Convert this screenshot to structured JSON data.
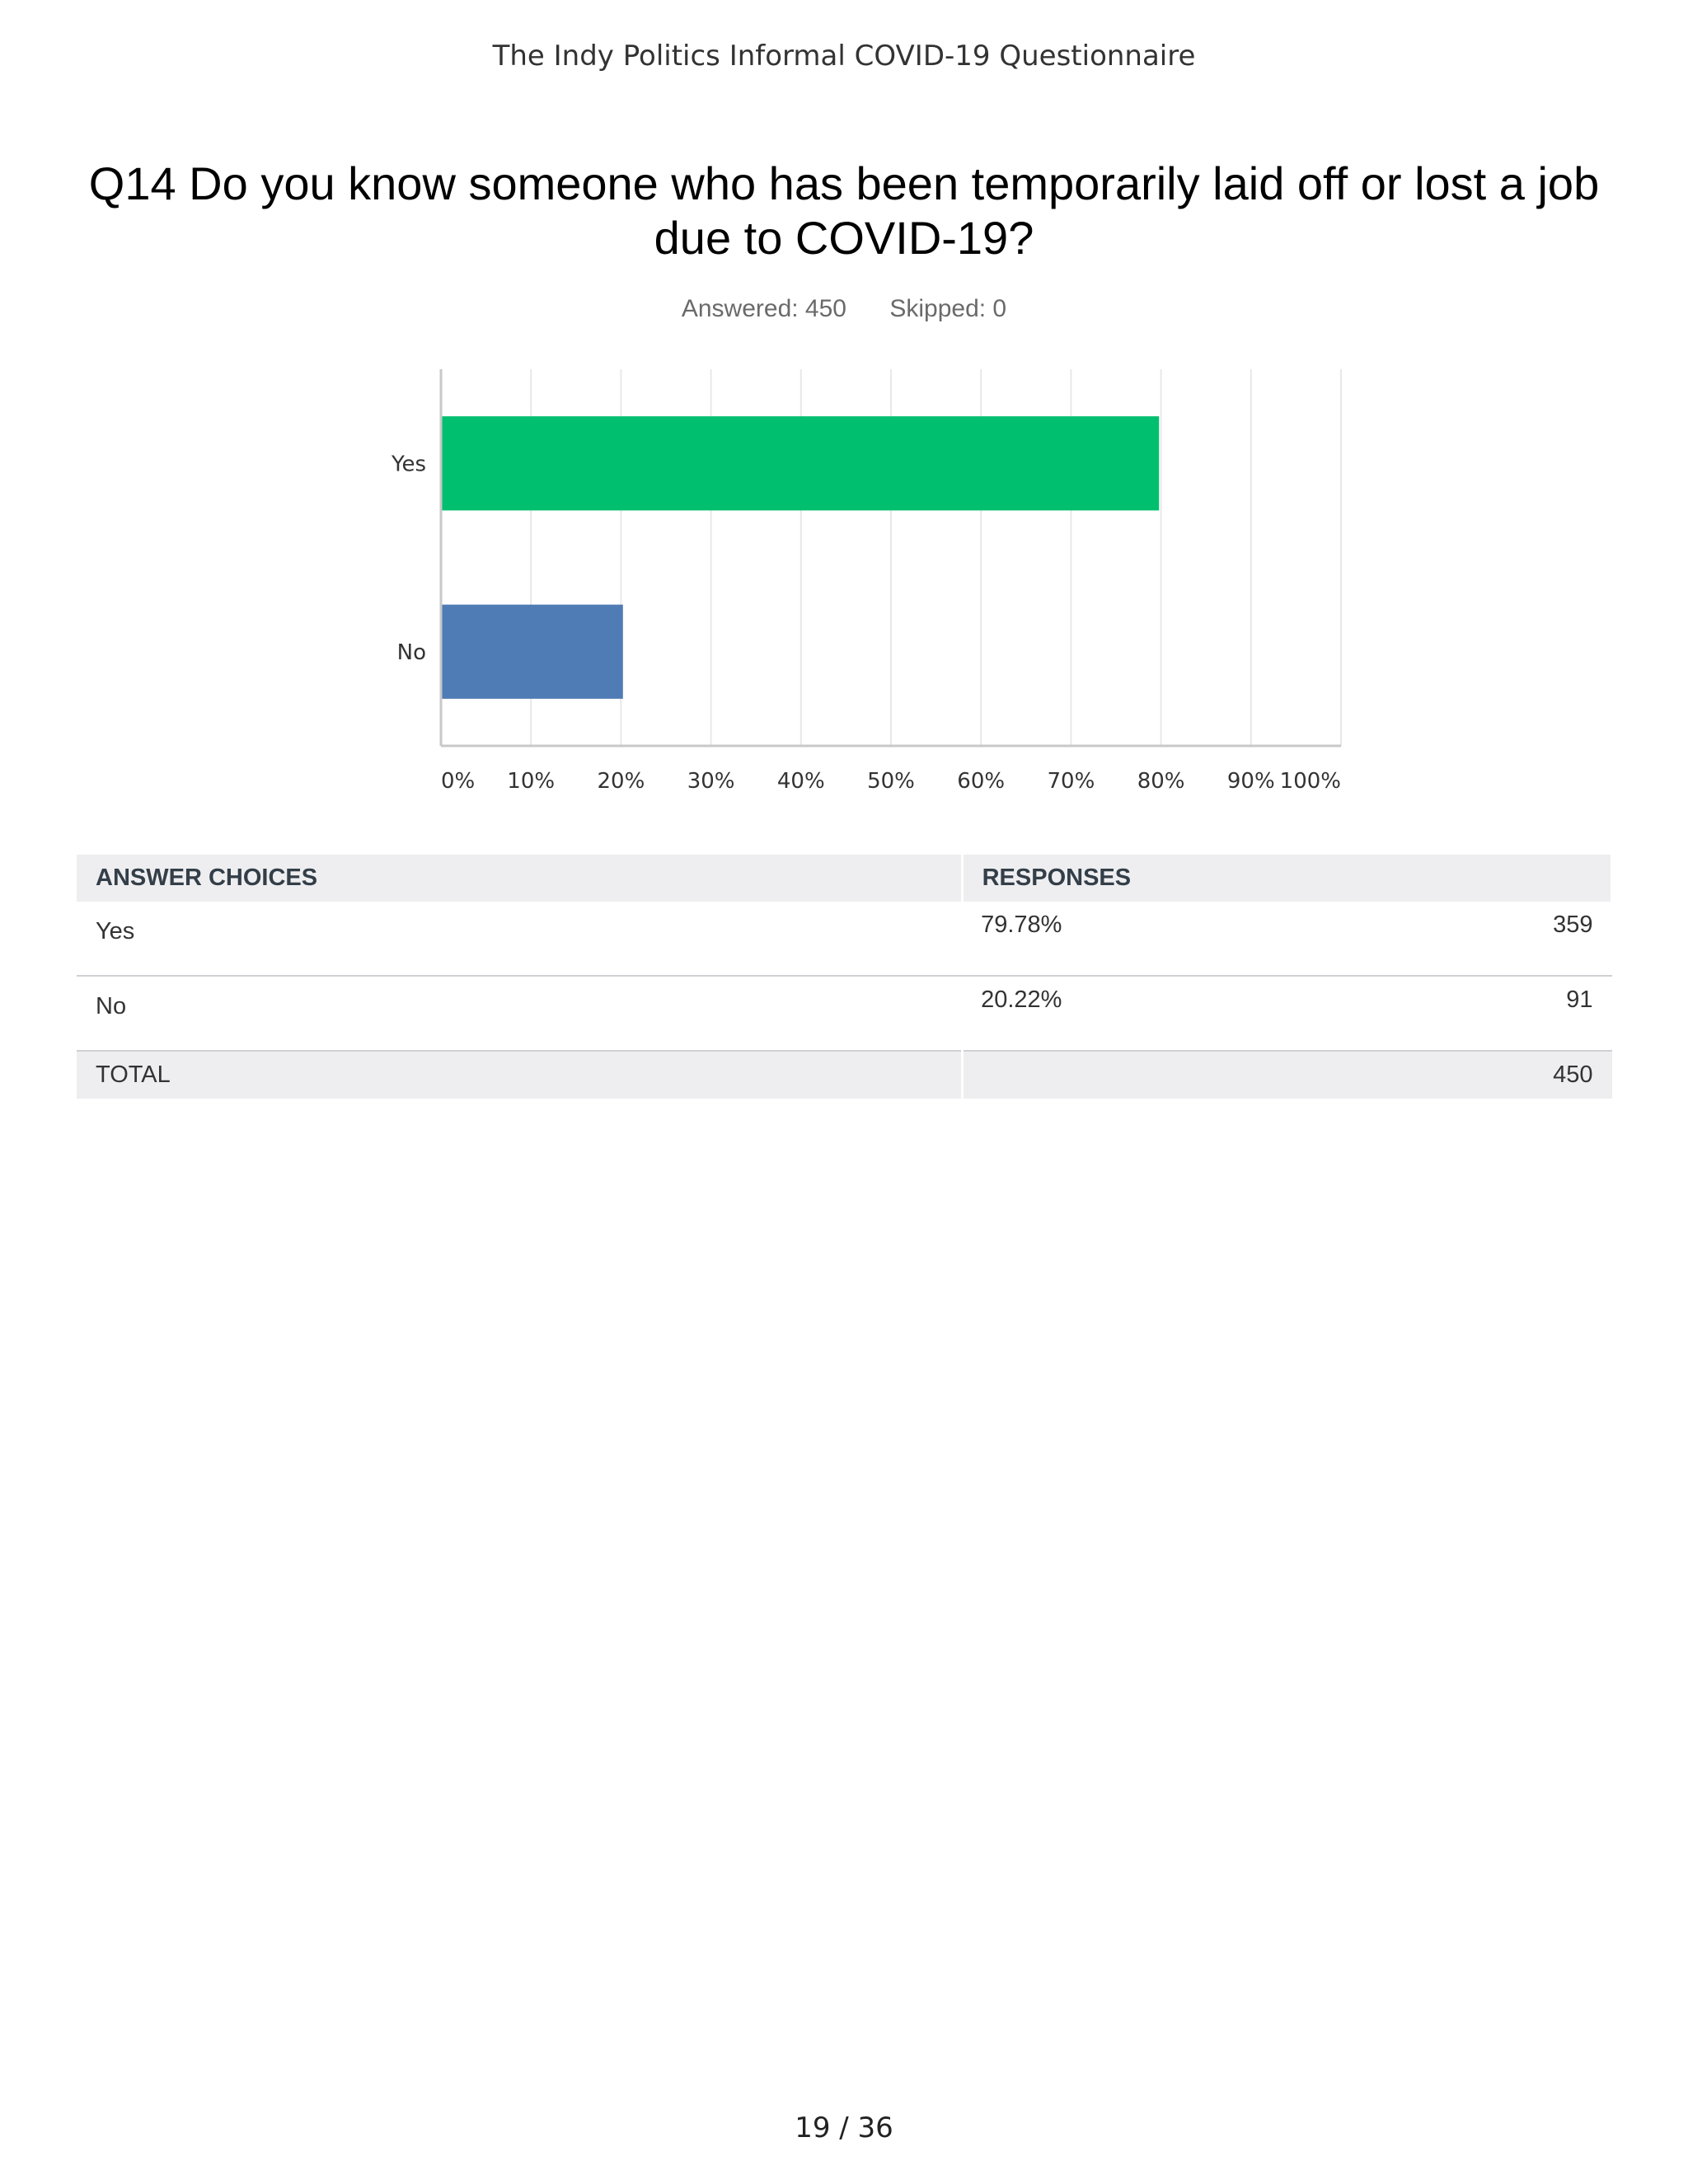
{
  "document": {
    "header": "The Indy Politics Informal COVID-19 Questionnaire",
    "page_number": "19 / 36"
  },
  "question": {
    "title": "Q14 Do you know someone who has been temporarily laid off or lost a job due to COVID-19?",
    "answered": "Answered: 450",
    "skipped": "Skipped: 0"
  },
  "chart_data": {
    "type": "bar",
    "orientation": "horizontal",
    "categories": [
      "Yes",
      "No"
    ],
    "values": [
      79.78,
      20.22
    ],
    "colors": [
      "#00bf6f",
      "#507cb6"
    ],
    "xlim": [
      0,
      100
    ],
    "x_ticks": [
      "0%",
      "10%",
      "20%",
      "30%",
      "40%",
      "50%",
      "60%",
      "70%",
      "80%",
      "90%",
      "100%"
    ],
    "grid": true
  },
  "table": {
    "headers": [
      "ANSWER CHOICES",
      "RESPONSES"
    ],
    "rows": [
      {
        "choice": "Yes",
        "percent": "79.78%",
        "count": "359"
      },
      {
        "choice": "No",
        "percent": "20.22%",
        "count": "91"
      }
    ],
    "total_label": "TOTAL",
    "total_count": "450"
  }
}
